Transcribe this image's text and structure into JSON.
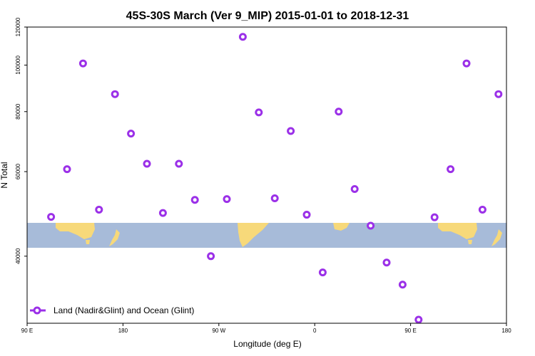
{
  "chart_data": {
    "type": "scatter",
    "title": "45S-30S March (Ver 9_MIP)   2015-01-01 to 2018-12-31",
    "xlabel": "Longitude (deg E)",
    "ylabel": "N Total",
    "x_ticks": [
      "90 E",
      "180",
      "90 W",
      "0",
      "90 E",
      "180"
    ],
    "y_ticks": [
      "40000",
      "60000",
      "80000",
      "100000",
      "120000"
    ],
    "y_tick_values": [
      40000,
      60000,
      80000,
      100000,
      120000
    ],
    "y_scale": "log",
    "ylim": [
      29000,
      120000
    ],
    "x_axis_extended_longitude_range": [
      90,
      540
    ],
    "grid": false,
    "legend": {
      "position": "bottom-left",
      "label": "Land (Nadir&Glint) and Ocean (Glint)"
    },
    "colors": {
      "series": "#9b30e8",
      "ocean": "#a7bbd9",
      "land": "#f7d97a"
    },
    "series": [
      {
        "name": "Land (Nadir&Glint) and Ocean (Glint)",
        "points": [
          [
            112.5,
            48300
          ],
          [
            127.5,
            60700
          ],
          [
            142.5,
            100800
          ],
          [
            157.5,
            50000
          ],
          [
            172.5,
            87000
          ],
          [
            187.5,
            72000
          ],
          [
            202.5,
            62300
          ],
          [
            217.5,
            49200
          ],
          [
            232.5,
            62300
          ],
          [
            247.5,
            52400
          ],
          [
            262.5,
            40000
          ],
          [
            277.5,
            52600
          ],
          [
            292.5,
            114500
          ],
          [
            307.5,
            79700
          ],
          [
            322.5,
            52800
          ],
          [
            337.5,
            72900
          ],
          [
            352.5,
            48800
          ],
          [
            367.5,
            37000
          ],
          [
            382.5,
            80000
          ],
          [
            397.5,
            55200
          ],
          [
            412.5,
            46300
          ],
          [
            427.5,
            38800
          ],
          [
            442.5,
            34900
          ],
          [
            457.5,
            29500
          ],
          [
            472.5,
            48200
          ],
          [
            487.5,
            60700
          ],
          [
            502.5,
            100800
          ],
          [
            517.5,
            50000
          ],
          [
            532.5,
            87000
          ]
        ]
      }
    ]
  }
}
